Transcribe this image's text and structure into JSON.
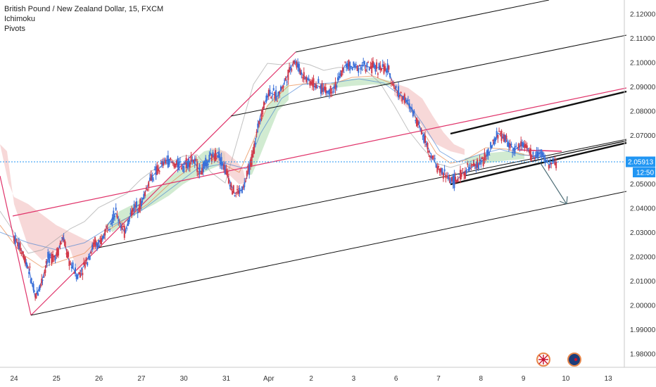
{
  "chart_data": {
    "type": "line",
    "title": "British Pound / New Zealand Dollar, 15, FXCM",
    "indicators": [
      "Ichimoku",
      "Pivots"
    ],
    "x_ticks": [
      "24",
      "25",
      "26",
      "27",
      "30",
      "31",
      "Apr",
      "2",
      "3",
      "6",
      "7",
      "8",
      "9",
      "10",
      "13"
    ],
    "y_ticks": [
      "2.12000",
      "2.11000",
      "2.10000",
      "2.09000",
      "2.08000",
      "2.07000",
      "2.06000",
      "2.05000",
      "2.04000",
      "2.03000",
      "2.02000",
      "2.01000",
      "2.00000",
      "1.99000",
      "1.98000"
    ],
    "ylim": [
      1.975,
      2.1245
    ],
    "current_price": "2.05913",
    "countdown": "12:50",
    "series": [
      {
        "values": [
          [
            0,
            2.028
          ],
          [
            0.2,
            2.022
          ],
          [
            0.35,
            2.015
          ],
          [
            0.5,
            2.003
          ],
          [
            0.65,
            2.01
          ],
          [
            0.8,
            2.019
          ],
          [
            1.0,
            2.021
          ],
          [
            1.15,
            2.028
          ],
          [
            1.3,
            2.018
          ],
          [
            1.5,
            2.012
          ],
          [
            1.7,
            2.018
          ],
          [
            1.9,
            2.026
          ],
          [
            2.0,
            2.024
          ],
          [
            2.2,
            2.033
          ],
          [
            2.4,
            2.038
          ],
          [
            2.6,
            2.03
          ],
          [
            2.8,
            2.04
          ],
          [
            3.0,
            2.042
          ],
          [
            3.2,
            2.052
          ],
          [
            3.4,
            2.056
          ],
          [
            3.6,
            2.06
          ],
          [
            3.8,
            2.058
          ],
          [
            4.0,
            2.058
          ],
          [
            4.2,
            2.06
          ],
          [
            4.4,
            2.055
          ],
          [
            4.6,
            2.06
          ],
          [
            4.8,
            2.063
          ],
          [
            5.0,
            2.055
          ],
          [
            5.2,
            2.046
          ],
          [
            5.4,
            2.048
          ],
          [
            5.6,
            2.06
          ],
          [
            5.8,
            2.078
          ],
          [
            6.0,
            2.088
          ],
          [
            6.2,
            2.086
          ],
          [
            6.4,
            2.093
          ],
          [
            6.6,
            2.101
          ],
          [
            6.8,
            2.095
          ],
          [
            7.0,
            2.092
          ],
          [
            7.2,
            2.09
          ],
          [
            7.4,
            2.088
          ],
          [
            7.6,
            2.091
          ],
          [
            7.8,
            2.099
          ],
          [
            8.0,
            2.098
          ],
          [
            8.2,
            2.099
          ],
          [
            8.4,
            2.098
          ],
          [
            8.6,
            2.098
          ],
          [
            8.8,
            2.097
          ],
          [
            9.0,
            2.089
          ],
          [
            9.2,
            2.085
          ],
          [
            9.4,
            2.08
          ],
          [
            9.6,
            2.072
          ],
          [
            9.8,
            2.063
          ],
          [
            10.0,
            2.056
          ],
          [
            10.2,
            2.053
          ],
          [
            10.4,
            2.051
          ],
          [
            10.6,
            2.055
          ],
          [
            10.8,
            2.057
          ],
          [
            11.0,
            2.059
          ],
          [
            11.2,
            2.063
          ],
          [
            11.4,
            2.071
          ],
          [
            11.6,
            2.068
          ],
          [
            11.8,
            2.064
          ],
          [
            12.0,
            2.067
          ],
          [
            12.2,
            2.061
          ],
          [
            12.4,
            2.063
          ],
          [
            12.6,
            2.058
          ],
          [
            12.8,
            2.059
          ]
        ]
      }
    ]
  }
}
